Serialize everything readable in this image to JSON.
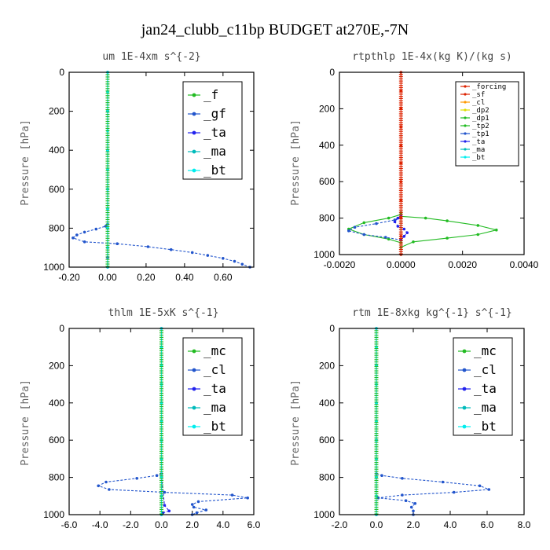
{
  "figure": {
    "title": "jan24_clubb_c11bp  BUDGET at270E,-7N"
  },
  "colors": {
    "green": "#22bb22",
    "darkblue": "#2255cc",
    "blue": "#2222ee",
    "cyan": "#00bbbb",
    "aqua": "#00eeee",
    "red": "#dd2200",
    "orange": "#ff9900",
    "yellow": "#dddd00"
  },
  "chart_data": [
    {
      "id": "um",
      "type": "line",
      "title": "um   1E-4xm  s^{-2}",
      "ylabel": "Pressure [hPa]",
      "xlim": [
        -0.2,
        0.76
      ],
      "ylim": [
        1000,
        0
      ],
      "xticks": [
        "-0.20",
        "0.00",
        "0.20",
        "0.40",
        "0.60"
      ],
      "xtick_values": [
        -0.2,
        0.0,
        0.2,
        0.4,
        0.6
      ],
      "yticks": [
        "0",
        "200",
        "400",
        "600",
        "800",
        "1000"
      ],
      "ytick_values": [
        0,
        200,
        400,
        600,
        800,
        1000
      ],
      "legend": [
        {
          "label": "_f",
          "color": "green"
        },
        {
          "label": "_gf",
          "color": "darkblue"
        },
        {
          "label": "_ta",
          "color": "blue"
        },
        {
          "label": "_ma",
          "color": "cyan"
        },
        {
          "label": "_bt",
          "color": "aqua"
        }
      ],
      "series": [
        {
          "name": "_f",
          "color": "green",
          "x": [
            0,
            0,
            0,
            0,
            0,
            0,
            0,
            0,
            0,
            0,
            0
          ],
          "y": [
            0,
            100,
            200,
            300,
            400,
            500,
            600,
            700,
            800,
            900,
            1000
          ]
        },
        {
          "name": "_gf",
          "color": "darkblue",
          "x": [
            0,
            -0.01,
            -0.06,
            -0.12,
            -0.16,
            -0.18,
            -0.12,
            0.05,
            0.21,
            0.33,
            0.44,
            0.52,
            0.6,
            0.66,
            0.7,
            0.74
          ],
          "y": [
            780,
            790,
            805,
            820,
            835,
            850,
            870,
            880,
            895,
            910,
            925,
            940,
            955,
            970,
            985,
            1000
          ]
        },
        {
          "name": "_ta",
          "color": "blue",
          "x": [
            0,
            0,
            0,
            0,
            0,
            0,
            0,
            0
          ],
          "y": [
            0,
            200,
            400,
            600,
            800,
            900,
            950,
            1000
          ]
        },
        {
          "name": "_ma",
          "color": "cyan",
          "x": [
            0,
            0,
            0,
            0,
            0,
            0
          ],
          "y": [
            0,
            200,
            400,
            600,
            800,
            1000
          ]
        },
        {
          "name": "_bt",
          "color": "aqua",
          "x": [
            0,
            0,
            0,
            0,
            0,
            0,
            0,
            0,
            0,
            0,
            0
          ],
          "y": [
            0,
            100,
            200,
            300,
            400,
            500,
            600,
            700,
            800,
            900,
            1000
          ]
        }
      ]
    },
    {
      "id": "rtpthlp",
      "type": "line",
      "title": "rtpthlp   1E-4x(kg K)/(kg s)",
      "ylabel": "Pressure [hPa]",
      "xlim": [
        -0.002,
        0.004
      ],
      "ylim": [
        1000,
        0
      ],
      "xticks": [
        "-0.0020",
        "0.0000",
        "0.0020",
        "0.0040"
      ],
      "xtick_values": [
        -0.002,
        0.0,
        0.002,
        0.004
      ],
      "yticks": [
        "0",
        "200",
        "400",
        "600",
        "800",
        "1000"
      ],
      "ytick_values": [
        0,
        200,
        400,
        600,
        800,
        1000
      ],
      "legend": [
        {
          "label": "_forcing",
          "color": "red"
        },
        {
          "label": "_sf",
          "color": "red"
        },
        {
          "label": "_cl",
          "color": "orange"
        },
        {
          "label": "_dp2",
          "color": "yellow"
        },
        {
          "label": "_dp1",
          "color": "green"
        },
        {
          "label": "_tp2",
          "color": "green"
        },
        {
          "label": "_tp1",
          "color": "darkblue"
        },
        {
          "label": "_ta",
          "color": "blue"
        },
        {
          "label": "_ma",
          "color": "cyan"
        },
        {
          "label": "_bt",
          "color": "aqua"
        }
      ],
      "series": [
        {
          "name": "_tp2",
          "color": "green",
          "x": [
            0,
            0,
            -0.0004,
            -0.0012,
            -0.0017,
            -0.0012,
            -0.0004,
            0,
            0,
            0.0008,
            0.0015,
            0.0025,
            0.0031,
            0.0025,
            0.0015,
            0.0004,
            0
          ],
          "y": [
            770,
            780,
            800,
            825,
            860,
            890,
            915,
            935,
            790,
            800,
            815,
            840,
            865,
            890,
            910,
            930,
            960
          ]
        },
        {
          "name": "_tp1",
          "color": "darkblue",
          "x": [
            0,
            -0.0002,
            -0.0008,
            -0.0015,
            -0.0017,
            -0.0012,
            -0.0005,
            0
          ],
          "y": [
            790,
            810,
            830,
            850,
            870,
            890,
            905,
            920
          ]
        },
        {
          "name": "_ta",
          "color": "blue",
          "x": [
            0,
            -0.0001,
            -0.0002,
            -0.0001,
            0.0001,
            0.0002,
            0.0001,
            0
          ],
          "y": [
            790,
            800,
            820,
            845,
            860,
            880,
            900,
            920
          ]
        },
        {
          "name": "_forcing",
          "color": "red",
          "x": [
            0,
            0,
            0,
            0,
            0,
            0,
            0,
            0,
            0,
            0,
            0
          ],
          "y": [
            0,
            100,
            200,
            300,
            400,
            500,
            600,
            700,
            800,
            900,
            1000
          ]
        }
      ]
    },
    {
      "id": "thlm",
      "type": "line",
      "title": "thlm   1E-5xK  s^{-1}",
      "ylabel": "Pressure [hPa]",
      "xlim": [
        -6,
        6
      ],
      "ylim": [
        1000,
        0
      ],
      "xticks": [
        "-6.0",
        "-4.0",
        "-2.0",
        "0.0",
        "2.0",
        "4.0",
        "6.0"
      ],
      "xtick_values": [
        -6,
        -4,
        -2,
        0,
        2,
        4,
        6
      ],
      "yticks": [
        "0",
        "200",
        "400",
        "600",
        "800",
        "1000"
      ],
      "ytick_values": [
        0,
        200,
        400,
        600,
        800,
        1000
      ],
      "legend": [
        {
          "label": "_mc",
          "color": "green"
        },
        {
          "label": "_cl",
          "color": "darkblue"
        },
        {
          "label": "_ta",
          "color": "blue"
        },
        {
          "label": "_ma",
          "color": "cyan"
        },
        {
          "label": "_bt",
          "color": "aqua"
        }
      ],
      "series": [
        {
          "name": "_mc",
          "color": "green",
          "x": [
            0,
            0,
            0,
            0,
            0,
            0,
            0,
            0,
            0,
            0,
            0
          ],
          "y": [
            0,
            100,
            200,
            300,
            400,
            500,
            600,
            700,
            800,
            900,
            1000
          ]
        },
        {
          "name": "_cl",
          "color": "darkblue",
          "x": [
            0,
            -0.3,
            -1.6,
            -3.6,
            -4.1,
            -3.4,
            0.2,
            4.6,
            5.6,
            2.4,
            2.0,
            2.1,
            2.9,
            2.3,
            2.0
          ],
          "y": [
            780,
            790,
            805,
            825,
            845,
            865,
            880,
            895,
            910,
            930,
            945,
            960,
            975,
            990,
            1000
          ]
        },
        {
          "name": "_ta",
          "color": "blue",
          "x": [
            0,
            0,
            0,
            0.2,
            0.5,
            0.1,
            0
          ],
          "y": [
            0,
            400,
            800,
            950,
            980,
            990,
            1000
          ]
        },
        {
          "name": "_bt",
          "color": "aqua",
          "x": [
            0,
            0,
            0,
            0,
            0,
            0,
            0,
            0,
            0,
            0,
            0
          ],
          "y": [
            0,
            100,
            200,
            300,
            400,
            500,
            600,
            700,
            800,
            900,
            1000
          ]
        }
      ]
    },
    {
      "id": "rtm",
      "type": "line",
      "title": "rtm   1E-8xkg  kg^{-1}  s^{-1}",
      "ylabel": "Pressure [hPa]",
      "xlim": [
        -2,
        8
      ],
      "ylim": [
        1000,
        0
      ],
      "xticks": [
        "-2.0",
        "0.0",
        "2.0",
        "4.0",
        "6.0",
        "8.0"
      ],
      "xtick_values": [
        -2,
        0,
        2,
        4,
        6,
        8
      ],
      "yticks": [
        "0",
        "200",
        "400",
        "600",
        "800",
        "1000"
      ],
      "ytick_values": [
        0,
        200,
        400,
        600,
        800,
        1000
      ],
      "legend": [
        {
          "label": "_mc",
          "color": "green"
        },
        {
          "label": "_cl",
          "color": "darkblue"
        },
        {
          "label": "_ta",
          "color": "blue"
        },
        {
          "label": "_ma",
          "color": "cyan"
        },
        {
          "label": "_bt",
          "color": "aqua"
        }
      ],
      "series": [
        {
          "name": "_mc",
          "color": "green",
          "x": [
            0,
            0,
            0,
            0,
            0,
            0,
            0,
            0,
            0,
            0,
            0
          ],
          "y": [
            0,
            100,
            200,
            300,
            400,
            500,
            600,
            700,
            800,
            900,
            1000
          ]
        },
        {
          "name": "_cl",
          "color": "darkblue",
          "x": [
            0,
            0.3,
            1.4,
            3.6,
            5.6,
            6.1,
            4.2,
            1.4,
            0.1,
            1.6,
            2.1,
            1.9,
            2.0,
            2.0
          ],
          "y": [
            780,
            790,
            805,
            825,
            845,
            865,
            880,
            895,
            910,
            925,
            940,
            960,
            980,
            1000
          ]
        },
        {
          "name": "_ta",
          "color": "blue",
          "x": [
            0,
            0,
            0,
            0,
            0,
            0
          ],
          "y": [
            0,
            200,
            400,
            600,
            800,
            1000
          ]
        },
        {
          "name": "_bt",
          "color": "aqua",
          "x": [
            0,
            0,
            0,
            0,
            0,
            0,
            0,
            0,
            0,
            0,
            0
          ],
          "y": [
            0,
            100,
            200,
            300,
            400,
            500,
            600,
            700,
            800,
            900,
            1000
          ]
        }
      ]
    }
  ]
}
